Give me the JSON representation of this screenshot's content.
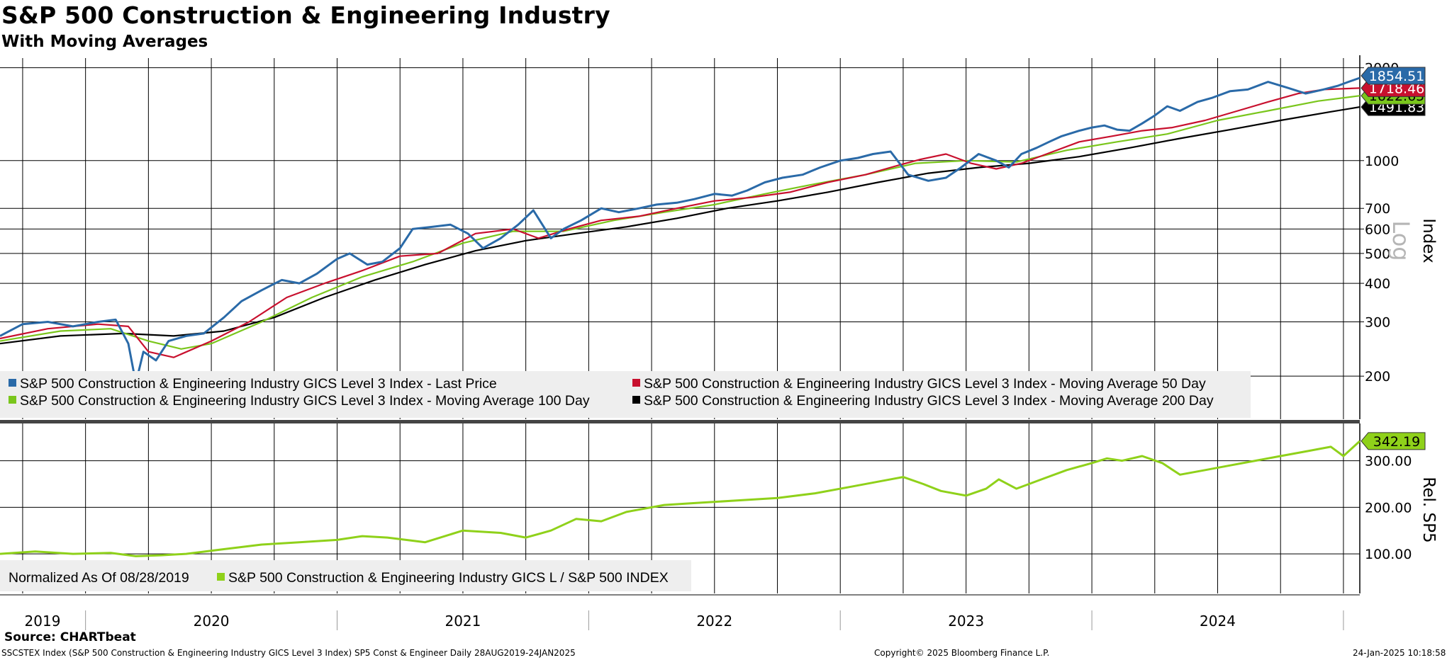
{
  "title": "S&P 500 Construction & Engineering Industry",
  "subtitle": "With Moving Averages",
  "source": "Source: CHARTbeat",
  "footer_left": "SSCSTEX Index (S&P 500 Construction & Engineering Industry GICS Level 3 Index) SP5 Const & Engineer  Daily 28AUG2019-24JAN2025",
  "footer_mid": "Copyright© 2025 Bloomberg Finance L.P.",
  "footer_right": "24-Jan-2025 10:18:58",
  "colors": {
    "last_price": "#2a6aa8",
    "ma50": "#c8102e",
    "ma100": "#7ac61c",
    "ma200": "#000000",
    "relative": "#8fd11a",
    "grid": "#000000",
    "legend_bg": "#eeeeee",
    "divider": "#444444"
  },
  "chart_data": [
    {
      "type": "line",
      "panel": "upper",
      "scale": "log",
      "ylabel": "Index",
      "scale_label": "Log",
      "ylim": [
        145,
        2150
      ],
      "y_ticks": [
        200,
        300,
        400,
        500,
        600,
        700,
        1000,
        2000
      ],
      "y_tick_labels": [
        "200",
        "300",
        "400",
        "500",
        "600",
        "700",
        "1000",
        "2000"
      ],
      "x_labels": [
        "2019",
        "2020",
        "2021",
        "2022",
        "2023",
        "2024"
      ],
      "xlim": [
        2019.66,
        2025.065
      ],
      "grid": true,
      "legend_position": "bottom-left",
      "series": [
        {
          "name": "S&P 500 Construction & Engineering Industry GICS Level 3 Index - Last Price",
          "last_label": "1854.51",
          "x": [
            2019.66,
            2019.75,
            2019.85,
            2019.95,
            2020.05,
            2020.12,
            2020.17,
            2020.2,
            2020.23,
            2020.28,
            2020.33,
            2020.4,
            2020.47,
            2020.55,
            2020.62,
            2020.7,
            2020.78,
            2020.85,
            2020.92,
            2021.0,
            2021.05,
            2021.12,
            2021.18,
            2021.25,
            2021.3,
            2021.38,
            2021.45,
            2021.52,
            2021.58,
            2021.65,
            2021.72,
            2021.78,
            2021.85,
            2021.9,
            2021.97,
            2022.05,
            2022.12,
            2022.2,
            2022.27,
            2022.35,
            2022.42,
            2022.5,
            2022.57,
            2022.63,
            2022.7,
            2022.77,
            2022.85,
            2022.92,
            2023.0,
            2023.07,
            2023.13,
            2023.2,
            2023.27,
            2023.35,
            2023.42,
            2023.48,
            2023.55,
            2023.62,
            2023.67,
            2023.72,
            2023.78,
            2023.83,
            2023.88,
            2023.95,
            2024.0,
            2024.05,
            2024.1,
            2024.15,
            2024.2,
            2024.25,
            2024.3,
            2024.35,
            2024.42,
            2024.48,
            2024.55,
            2024.62,
            2024.7,
            2024.78,
            2024.85,
            2024.92,
            2024.98,
            2025.02,
            2025.065
          ],
          "y": [
            270,
            295,
            300,
            290,
            300,
            305,
            255,
            190,
            240,
            225,
            260,
            270,
            275,
            310,
            350,
            380,
            410,
            400,
            430,
            480,
            500,
            460,
            470,
            520,
            600,
            610,
            620,
            580,
            520,
            560,
            620,
            690,
            560,
            600,
            640,
            700,
            680,
            700,
            720,
            730,
            750,
            780,
            770,
            800,
            850,
            880,
            900,
            950,
            1000,
            1020,
            1050,
            1070,
            900,
            860,
            880,
            950,
            1050,
            1000,
            950,
            1050,
            1100,
            1150,
            1200,
            1250,
            1280,
            1300,
            1260,
            1250,
            1320,
            1400,
            1500,
            1450,
            1550,
            1600,
            1680,
            1700,
            1800,
            1720,
            1650,
            1700,
            1750,
            1800,
            1854.51
          ]
        },
        {
          "name": "S&P 500 Construction & Engineering Industry GICS Level 3 Index - Moving Average 50 Day",
          "last_label": "1718.46",
          "x": [
            2019.66,
            2019.85,
            2020.05,
            2020.17,
            2020.25,
            2020.35,
            2020.5,
            2020.65,
            2020.8,
            2020.95,
            2021.1,
            2021.25,
            2021.4,
            2021.55,
            2021.7,
            2021.8,
            2021.92,
            2022.05,
            2022.2,
            2022.35,
            2022.5,
            2022.65,
            2022.8,
            2022.95,
            2023.1,
            2023.22,
            2023.32,
            2023.42,
            2023.52,
            2023.62,
            2023.72,
            2023.82,
            2023.95,
            2024.08,
            2024.2,
            2024.32,
            2024.45,
            2024.58,
            2024.7,
            2024.82,
            2024.92,
            2025.065
          ],
          "y": [
            265,
            285,
            295,
            290,
            240,
            230,
            260,
            300,
            360,
            400,
            440,
            490,
            500,
            580,
            600,
            560,
            600,
            640,
            660,
            700,
            740,
            760,
            790,
            850,
            900,
            960,
            1010,
            1050,
            980,
            940,
            980,
            1050,
            1150,
            1200,
            1250,
            1280,
            1350,
            1450,
            1550,
            1650,
            1700,
            1718.46
          ]
        },
        {
          "name": "S&P 500 Construction & Engineering Industry GICS Level 3 Index - Moving Average 100 Day",
          "last_label": "1622.65",
          "x": [
            2019.66,
            2019.9,
            2020.1,
            2020.25,
            2020.38,
            2020.5,
            2020.7,
            2020.9,
            2021.1,
            2021.3,
            2021.5,
            2021.7,
            2021.9,
            2022.1,
            2022.3,
            2022.5,
            2022.7,
            2022.9,
            2023.1,
            2023.3,
            2023.5,
            2023.7,
            2023.9,
            2024.1,
            2024.3,
            2024.5,
            2024.7,
            2024.9,
            2025.065
          ],
          "y": [
            260,
            280,
            285,
            260,
            245,
            255,
            300,
            360,
            420,
            470,
            540,
            590,
            590,
            640,
            680,
            720,
            780,
            840,
            900,
            980,
            1000,
            990,
            1080,
            1150,
            1220,
            1350,
            1450,
            1560,
            1622.65
          ]
        },
        {
          "name": "S&P 500 Construction & Engineering Industry GICS Level 3 Index - Moving Average 200 Day",
          "last_label": "1491.83",
          "x": [
            2019.66,
            2019.9,
            2020.15,
            2020.35,
            2020.55,
            2020.75,
            2020.95,
            2021.15,
            2021.35,
            2021.55,
            2021.75,
            2021.95,
            2022.15,
            2022.35,
            2022.55,
            2022.75,
            2022.95,
            2023.15,
            2023.35,
            2023.55,
            2023.75,
            2023.95,
            2024.15,
            2024.35,
            2024.55,
            2024.75,
            2024.95,
            2025.065
          ],
          "y": [
            255,
            270,
            275,
            270,
            280,
            310,
            360,
            410,
            460,
            510,
            550,
            580,
            610,
            650,
            700,
            740,
            790,
            850,
            910,
            950,
            980,
            1030,
            1100,
            1180,
            1260,
            1350,
            1440,
            1491.83
          ]
        }
      ]
    },
    {
      "type": "line",
      "panel": "lower",
      "ylabel": "Rel. SP5",
      "ylim": [
        15,
        380
      ],
      "y_ticks": [
        100,
        200,
        300
      ],
      "y_tick_labels": [
        "100.00",
        "200.00",
        "300.00"
      ],
      "xlim": [
        2019.66,
        2025.065
      ],
      "grid": true,
      "legend_position": "bottom-left",
      "legend_note": "Normalized As Of 08/28/2019",
      "series": [
        {
          "name": "S&P 500 Construction & Engineering Industry GICS L / S&P 500 INDEX",
          "last_label": "342.19",
          "x": [
            2019.66,
            2019.8,
            2019.95,
            2020.1,
            2020.2,
            2020.3,
            2020.4,
            2020.55,
            2020.7,
            2020.85,
            2021.0,
            2021.1,
            2021.2,
            2021.35,
            2021.5,
            2021.65,
            2021.75,
            2021.85,
            2021.95,
            2022.05,
            2022.15,
            2022.3,
            2022.45,
            2022.6,
            2022.75,
            2022.9,
            2023.05,
            2023.15,
            2023.25,
            2023.33,
            2023.4,
            2023.5,
            2023.58,
            2023.63,
            2023.7,
            2023.8,
            2023.9,
            2024.0,
            2024.06,
            2024.12,
            2024.2,
            2024.28,
            2024.35,
            2024.45,
            2024.55,
            2024.65,
            2024.75,
            2024.85,
            2024.95,
            2025.0,
            2025.065
          ],
          "y": [
            100,
            105,
            100,
            102,
            95,
            97,
            100,
            110,
            120,
            125,
            130,
            138,
            135,
            125,
            150,
            145,
            135,
            150,
            175,
            170,
            190,
            205,
            210,
            215,
            220,
            230,
            245,
            255,
            265,
            250,
            235,
            225,
            240,
            260,
            240,
            260,
            280,
            295,
            305,
            300,
            310,
            295,
            270,
            280,
            290,
            300,
            310,
            320,
            330,
            310,
            342.19
          ]
        }
      ]
    }
  ],
  "legends": {
    "upper": [
      {
        "label": "S&P 500 Construction & Engineering Industry GICS Level 3 Index - Last Price",
        "color": "#2a6aa8"
      },
      {
        "label": "S&P 500 Construction & Engineering Industry GICS Level 3 Index - Moving Average 50 Day",
        "color": "#c8102e"
      },
      {
        "label": "S&P 500 Construction & Engineering Industry GICS Level 3 Index - Moving Average 100 Day",
        "color": "#7ac61c"
      },
      {
        "label": "S&P 500 Construction & Engineering Industry GICS Level 3 Index - Moving Average 200 Day",
        "color": "#000000"
      }
    ],
    "lower": [
      {
        "label": "Normalized As Of 08/28/2019",
        "color": ""
      },
      {
        "label": "S&P 500 Construction & Engineering Industry GICS L / S&P 500 INDEX",
        "color": "#8fd11a"
      }
    ]
  }
}
